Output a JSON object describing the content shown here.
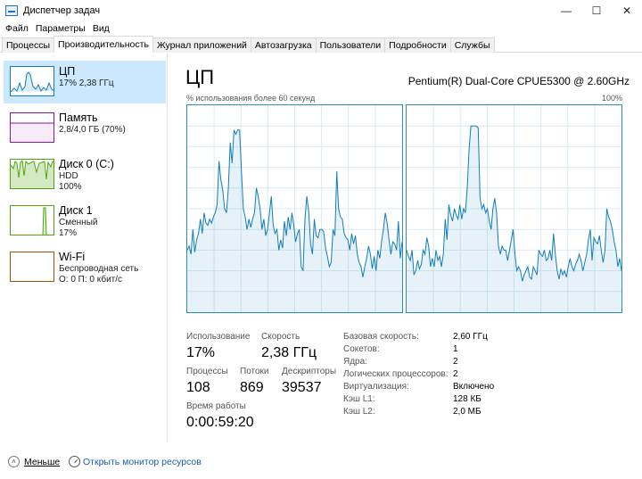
{
  "window": {
    "title": "Диспетчер задач",
    "controls": {
      "minimize": "—",
      "maximize": "☐",
      "close": "✕"
    }
  },
  "menu": [
    "Файл",
    "Параметры",
    "Вид"
  ],
  "tabs": [
    "Процессы",
    "Производительность",
    "Журнал приложений",
    "Автозагрузка",
    "Пользователи",
    "Подробности",
    "Службы"
  ],
  "active_tab": "Производительность",
  "sidebar": [
    {
      "title": "ЦП",
      "line1": "17% 2,38 ГГц",
      "line2": "",
      "graph_color": "#117dbb",
      "selected": true
    },
    {
      "title": "Память",
      "line1": "2,8/4,0 ГБ (70%)",
      "line2": "",
      "graph_color": "#8b12ae",
      "selected": false
    },
    {
      "title": "Диск 0 (C:)",
      "line1": "HDD",
      "line2": "100%",
      "graph_color": "#4da60c",
      "selected": false
    },
    {
      "title": "Диск 1",
      "line1": "Сменный",
      "line2": "17%",
      "graph_color": "#4da60c",
      "selected": false
    },
    {
      "title": "Wi-Fi",
      "line1": "Беспроводная сеть",
      "line2": "О: 0 П: 0 кбит/с",
      "graph_color": "#a74f01",
      "selected": false
    }
  ],
  "main": {
    "title": "ЦП",
    "model": "Pentium(R) Dual-Core CPUE5300 @ 2.60GHz",
    "graph_caption_left": "% использования более 60 секунд",
    "graph_caption_right": "100%",
    "graph_color": "#117dbb",
    "stats": {
      "utilization_label": "Использование",
      "utilization_value": "17%",
      "speed_label": "Скорость",
      "speed_value": "2,38 ГГц",
      "processes_label": "Процессы",
      "processes_value": "108",
      "threads_label": "Потоки",
      "threads_value": "869",
      "handles_label": "Дескрипторы",
      "handles_value": "39537",
      "uptime_label": "Время работы",
      "uptime_value": "0:00:59:20"
    },
    "specs": [
      {
        "label": "Базовая скорость:",
        "value": "2,60 ГГц"
      },
      {
        "label": "Сокетов:",
        "value": "1"
      },
      {
        "label": "Ядра:",
        "value": "2"
      },
      {
        "label": "Логических процессоров:",
        "value": "2"
      },
      {
        "label": "Виртуализация:",
        "value": "Включено"
      },
      {
        "label": "Кэш L1:",
        "value": "128 КБ"
      },
      {
        "label": "Кэш L2:",
        "value": "2,0 МБ"
      }
    ],
    "core1_series": [
      30,
      32,
      28,
      40,
      29,
      35,
      38,
      45,
      38,
      48,
      43,
      42,
      45,
      43,
      46,
      48,
      52,
      73,
      64,
      59,
      50,
      48,
      60,
      82,
      72,
      88,
      86,
      88,
      88,
      68,
      50,
      46,
      40,
      45,
      41,
      45,
      48,
      60,
      56,
      50,
      40,
      45,
      37,
      40,
      48,
      56,
      42,
      38,
      40,
      30,
      35,
      31,
      44,
      37,
      46,
      40,
      48,
      42,
      34,
      38,
      40,
      22,
      20,
      45,
      56,
      49,
      33,
      28,
      45,
      37,
      36,
      40,
      40,
      39,
      31,
      27,
      22,
      24,
      40,
      37,
      68,
      50,
      46,
      45,
      38,
      36,
      35,
      30,
      38,
      33,
      37,
      28,
      24,
      22,
      17,
      22,
      26,
      32,
      28,
      21,
      27,
      20,
      30,
      26,
      34,
      40,
      48,
      43,
      35,
      28,
      34,
      33,
      30,
      44,
      26,
      34
    ],
    "core2_series": [
      30,
      27,
      25,
      30,
      18,
      20,
      25,
      21,
      23,
      30,
      28,
      36,
      32,
      22,
      26,
      22,
      30,
      25,
      27,
      22,
      28,
      45,
      35,
      52,
      47,
      44,
      50,
      47,
      45,
      52,
      45,
      50,
      48,
      60,
      78,
      90,
      90,
      90,
      90,
      89,
      55,
      50,
      52,
      48,
      50,
      44,
      40,
      50,
      55,
      48,
      32,
      28,
      32,
      30,
      30,
      25,
      30,
      35,
      40,
      28,
      20,
      22,
      20,
      15,
      18,
      20,
      22,
      17,
      16,
      22,
      20,
      18,
      30,
      28,
      27,
      30,
      25,
      26,
      30,
      25,
      38,
      28,
      20,
      16,
      21,
      18,
      20,
      17,
      22,
      26,
      22,
      20,
      23,
      25,
      28,
      25,
      20,
      24,
      28,
      35,
      40,
      25,
      36,
      34,
      33,
      37,
      30,
      24,
      30,
      50,
      46,
      44,
      40,
      34,
      30,
      22,
      26,
      20
    ]
  }
}
